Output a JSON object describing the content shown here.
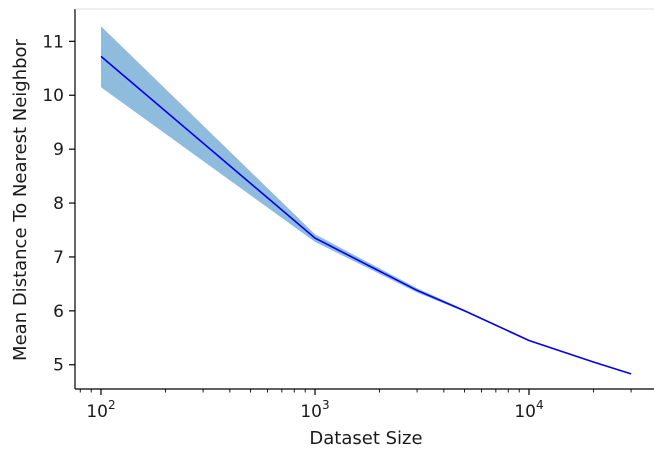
{
  "chart_data": {
    "type": "line",
    "title": "",
    "xlabel": "Dataset Size",
    "ylabel": "Mean Distance To Nearest Neighbor",
    "x_scale": "log",
    "xlim": [
      75,
      35000
    ],
    "ylim": [
      4.55,
      11.6
    ],
    "x_ticks": [
      {
        "value": 100,
        "base": "10",
        "exp": "2"
      },
      {
        "value": 1000,
        "base": "10",
        "exp": "3"
      },
      {
        "value": 10000,
        "base": "10",
        "exp": "4"
      }
    ],
    "y_ticks": [
      5,
      6,
      7,
      8,
      9,
      10,
      11
    ],
    "grid": false,
    "legend": "none",
    "series": [
      {
        "x": [
          100,
          1000,
          3000,
          5000,
          10000,
          20000,
          30000
        ],
        "y": [
          10.72,
          7.35,
          6.38,
          6.0,
          5.45,
          5.05,
          4.83
        ],
        "lower": [
          10.15,
          7.28,
          6.34,
          5.98,
          5.44,
          5.04,
          4.82
        ],
        "upper": [
          11.28,
          7.42,
          6.42,
          6.02,
          5.46,
          5.06,
          4.84
        ],
        "line_color": "#0000ee",
        "band_color": "#8fbbdc"
      }
    ]
  }
}
